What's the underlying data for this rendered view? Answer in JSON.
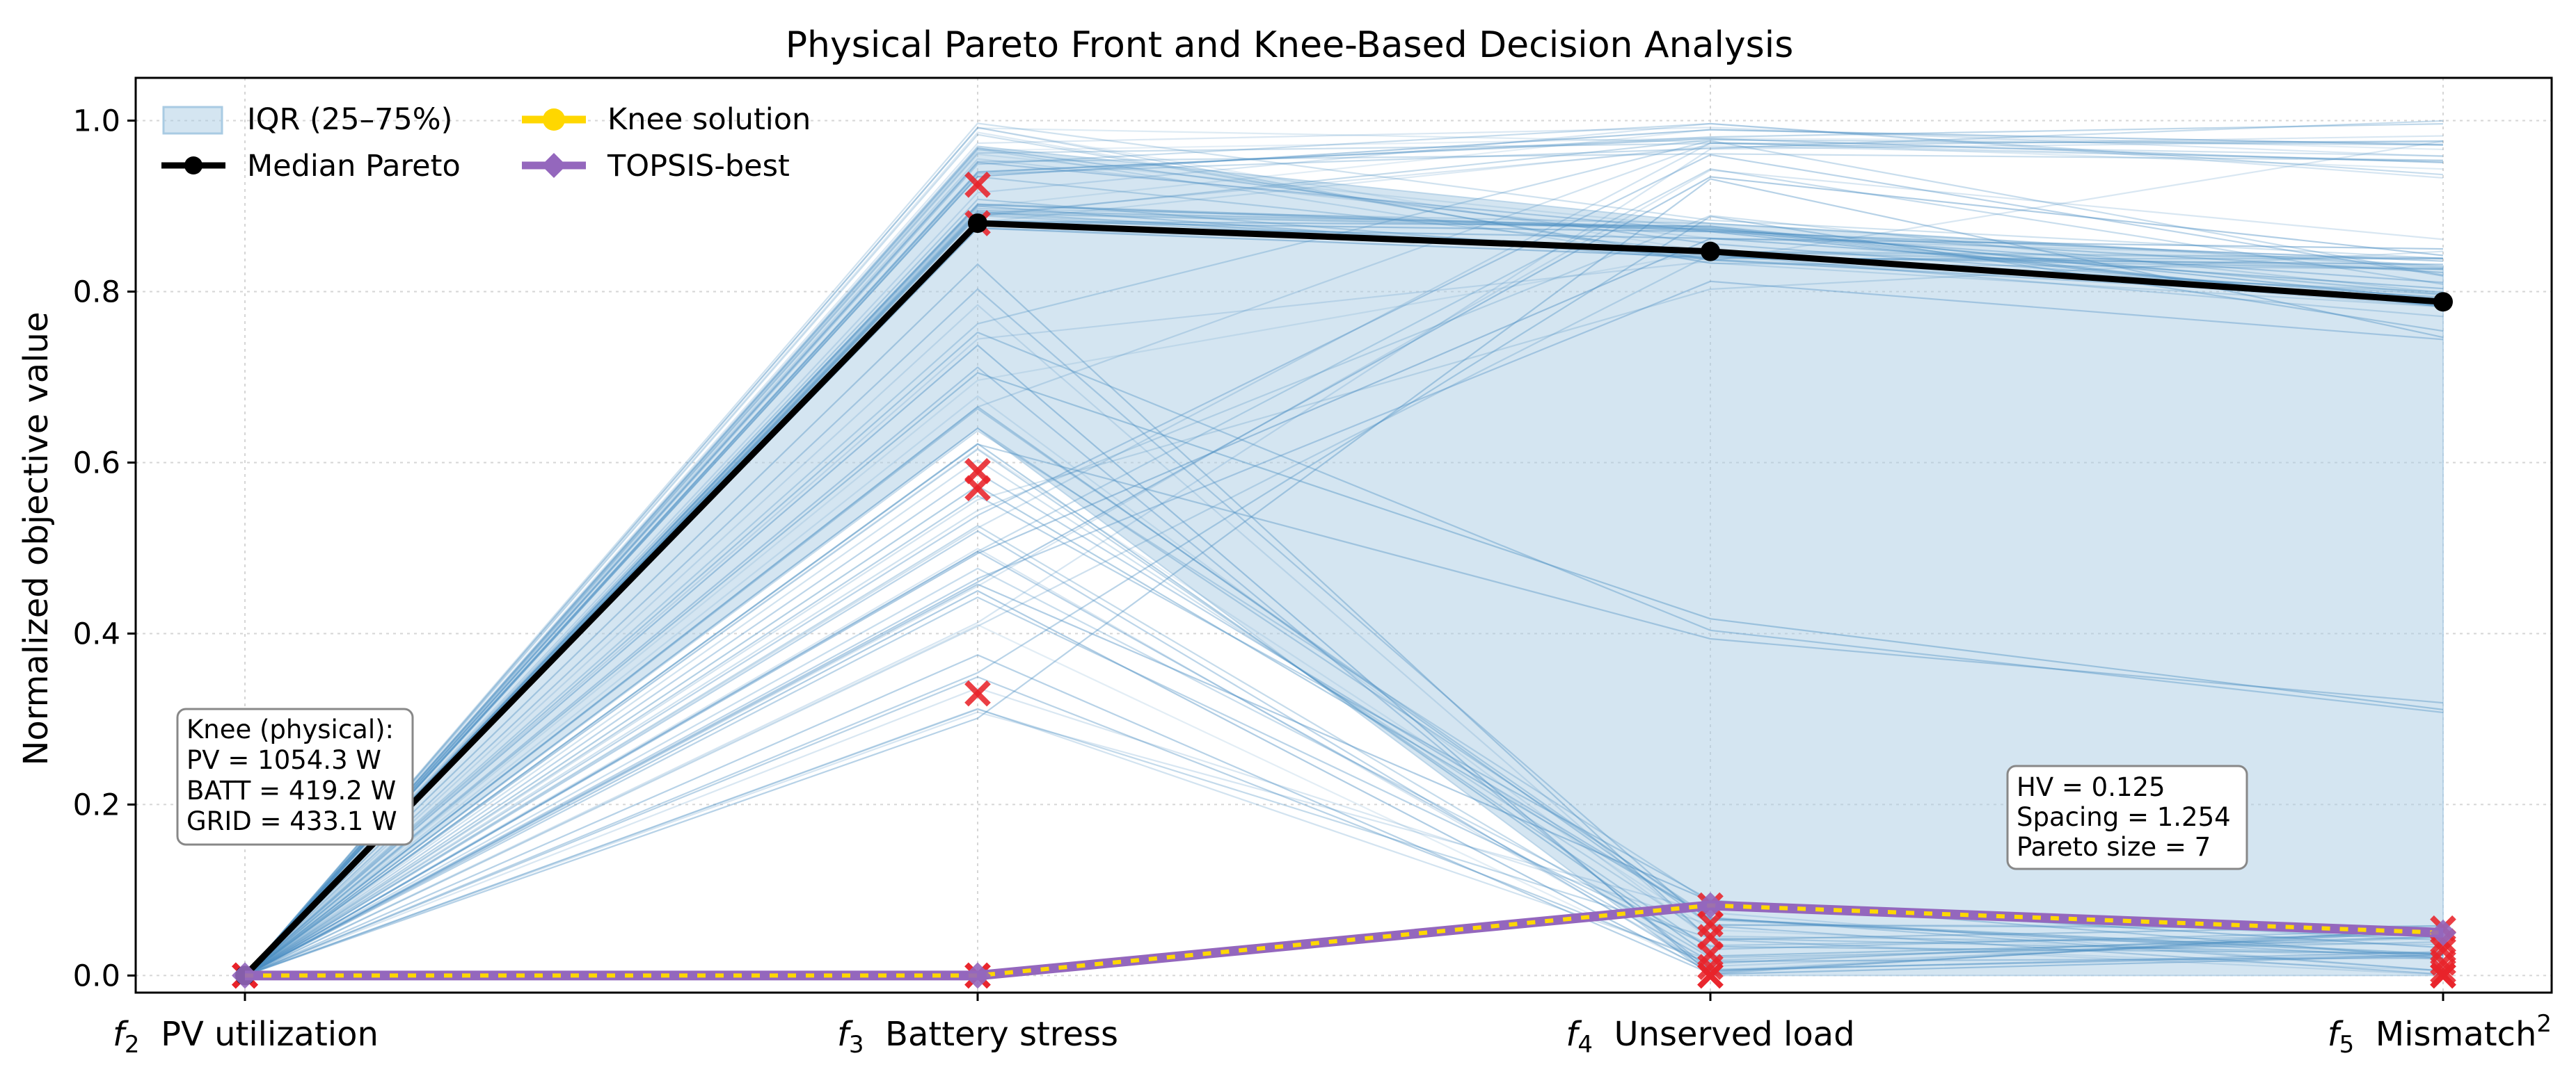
{
  "chart_data": {
    "type": "line",
    "title": "Physical Pareto Front and Knee-Based Decision Analysis",
    "xlabel": "",
    "ylabel": "Normalized objective value",
    "ylim": [
      -0.02,
      1.05
    ],
    "yticks": [
      "0.0",
      "0.2",
      "0.4",
      "0.6",
      "0.8",
      "1.0"
    ],
    "grid": true,
    "legend_position": "top-left",
    "categories": [
      {
        "sym": "f",
        "sub": "2",
        "name": "PV utilization",
        "sup": ""
      },
      {
        "sym": "f",
        "sub": "3",
        "name": "Battery stress",
        "sup": ""
      },
      {
        "sym": "f",
        "sub": "4",
        "name": "Unserved load",
        "sup": ""
      },
      {
        "sym": "f",
        "sub": "5",
        "name": "Mismatch",
        "sup": "2"
      }
    ],
    "iqr_band": {
      "lower": [
        0.0,
        0.64,
        0.0,
        0.0
      ],
      "upper": [
        0.0,
        0.97,
        0.88,
        0.83
      ]
    },
    "series": [
      {
        "name": "Median Pareto",
        "values": [
          0.0,
          0.88,
          0.847,
          0.788
        ],
        "color": "#000000"
      },
      {
        "name": "Knee solution",
        "values": [
          0.0,
          0.0,
          0.082,
          0.05
        ],
        "color": "#FFD700"
      },
      {
        "name": "TOPSIS-best",
        "values": [
          0.0,
          0.0,
          0.082,
          0.05
        ],
        "color": "#9467BD"
      }
    ],
    "pareto_markers": [
      [
        0.0,
        0.925,
        0.082,
        0.055
      ],
      [
        0.0,
        0.88,
        0.06,
        0.04
      ],
      [
        0.0,
        0.59,
        0.045,
        0.03
      ],
      [
        0.0,
        0.57,
        0.025,
        0.015
      ],
      [
        0.0,
        0.33,
        0.01,
        0.005
      ],
      [
        0.0,
        0.0,
        0.0,
        0.0
      ],
      [
        0.0,
        0.0,
        0.0,
        0.0
      ]
    ],
    "legend": [
      {
        "label": "IQR (25–75%)",
        "kind": "band"
      },
      {
        "label": "Median Pareto",
        "kind": "median"
      },
      {
        "label": "Knee solution",
        "kind": "knee"
      },
      {
        "label": "TOPSIS-best",
        "kind": "topsis"
      }
    ],
    "annotations": {
      "knee_box": [
        "Knee (physical):",
        "PV = 1054.3 W",
        "BATT = 419.2 W",
        "GRID = 433.1 W"
      ],
      "metrics_box": [
        "HV = 0.125",
        "Spacing = 1.254",
        "Pareto size = 7"
      ]
    },
    "colors": {
      "lines": "#4A8EC2",
      "band": "#A9CBE3",
      "median": "#000000",
      "knee": "#FFD700",
      "topsis": "#9467BD",
      "marker": "#E8232A"
    }
  }
}
